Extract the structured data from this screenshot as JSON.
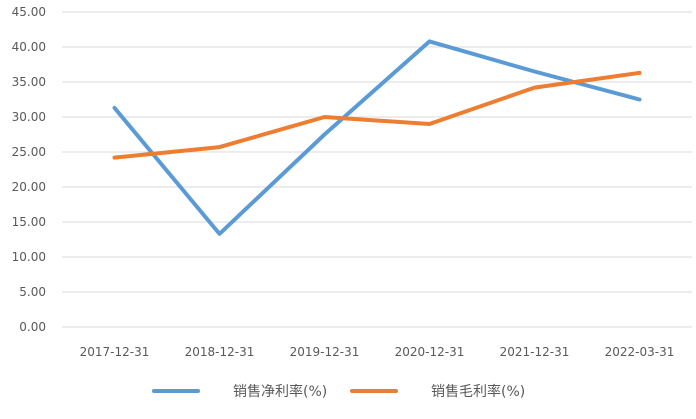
{
  "chart_data": {
    "type": "line",
    "categories": [
      "2017-12-31",
      "2018-12-31",
      "2019-12-31",
      "2020-12-31",
      "2021-12-31",
      "2022-03-31"
    ],
    "series": [
      {
        "name": "销售净利率(%)",
        "color": "#5B9BD5",
        "values": [
          31.3,
          13.3,
          27.5,
          40.8,
          36.5,
          32.5
        ]
      },
      {
        "name": "销售毛利率(%)",
        "color": "#ED7D31",
        "values": [
          24.2,
          25.7,
          30.0,
          29.0,
          34.2,
          36.3
        ]
      }
    ],
    "ylim": [
      0,
      45
    ],
    "yticks": [
      "0.00",
      "5.00",
      "10.00",
      "15.00",
      "20.00",
      "25.00",
      "30.00",
      "35.00",
      "40.00",
      "45.00"
    ],
    "grid": true,
    "legend_position": "bottom",
    "title": "",
    "xlabel": "",
    "ylabel": ""
  }
}
